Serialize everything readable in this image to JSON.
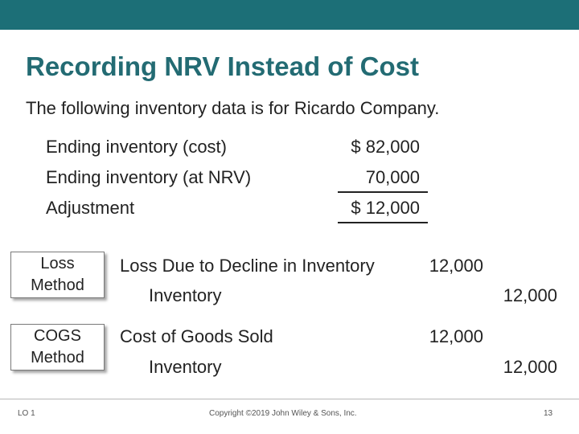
{
  "slide": {
    "title": "Recording NRV Instead of Cost",
    "intro": "The following inventory data is for Ricardo Company."
  },
  "inventory": {
    "rows": [
      {
        "label": "Ending inventory (cost)",
        "value": "$ 82,000"
      },
      {
        "label": "Ending inventory (at NRV)",
        "value": "70,000"
      },
      {
        "label": "Adjustment",
        "value": "$ 12,000"
      }
    ]
  },
  "methods": [
    {
      "name": "Loss\nMethod",
      "debit_account": "Loss Due to Decline in Inventory",
      "debit_amount": "12,000",
      "credit_account": "Inventory",
      "credit_amount": "12,000"
    },
    {
      "name": "COGS\nMethod",
      "debit_account": "Cost of Goods Sold",
      "debit_amount": "12,000",
      "credit_account": "Inventory",
      "credit_amount": "12,000"
    }
  ],
  "footer": {
    "lo": "LO 1",
    "copyright": "Copyright ©2019 John Wiley & Sons, Inc.",
    "page": "13"
  },
  "colors": {
    "top_bar": "#1c6f77",
    "title": "#236b73"
  }
}
